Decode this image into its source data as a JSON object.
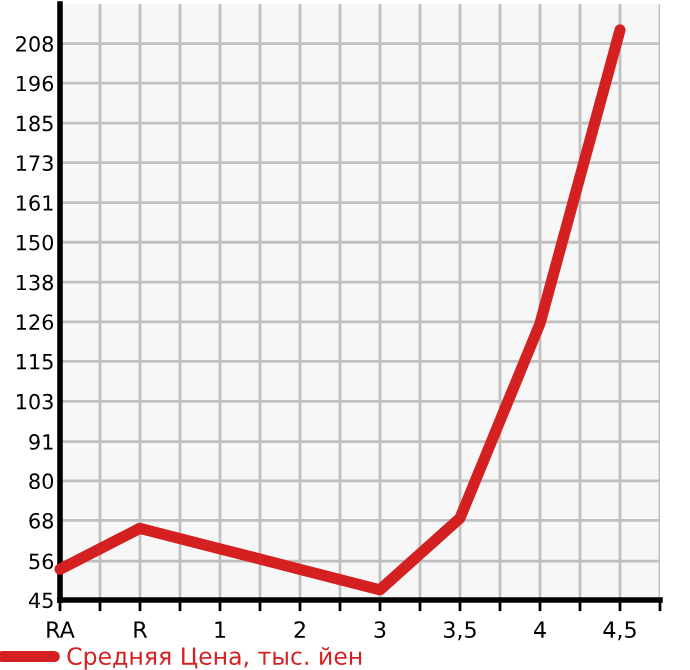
{
  "chart_data": {
    "type": "line",
    "categories": [
      "RA",
      "R",
      "1",
      "2",
      "3",
      "3,5",
      "4",
      "4,5"
    ],
    "series": [
      {
        "name": "Средняя Цена, тыс. йен",
        "color": "#d42020",
        "values": [
          54,
          66,
          60,
          54,
          48,
          69,
          126,
          212
        ]
      }
    ],
    "ylim": [
      45,
      219.6
    ],
    "yticks": [
      45,
      {
        "value": 56.4,
        "label": "56"
      },
      {
        "value": 68.3,
        "label": "68"
      },
      {
        "value": 79.9,
        "label": "80"
      },
      {
        "value": 91.4,
        "label": "91"
      },
      {
        "value": 103.2,
        "label": "103"
      },
      {
        "value": 114.9,
        "label": "115"
      },
      {
        "value": 126.5,
        "label": "126"
      },
      {
        "value": 138.1,
        "label": "138"
      },
      {
        "value": 149.8,
        "label": "150"
      },
      {
        "value": 161.4,
        "label": "161"
      },
      {
        "value": 173.1,
        "label": "173"
      },
      {
        "value": 184.7,
        "label": "185"
      },
      {
        "value": 196.4,
        "label": "196"
      },
      {
        "value": 208.0,
        "label": "208"
      }
    ],
    "grid": true,
    "legend": "bottom left",
    "marker": "none",
    "line_style": "solid"
  }
}
